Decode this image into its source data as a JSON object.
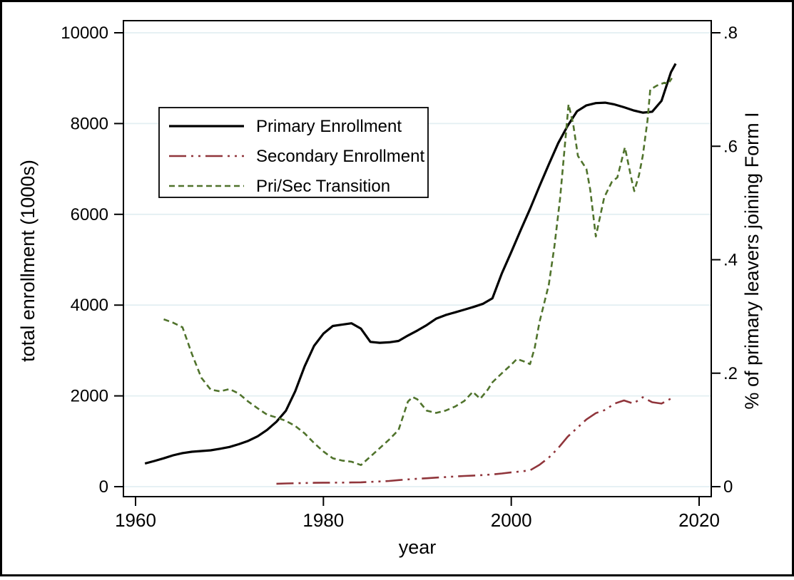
{
  "chart_data": {
    "type": "line",
    "title": "",
    "xlabel": "year",
    "ylabel_left": "total enrollment (1000s)",
    "ylabel_right": "% of primary leavers joining Form I",
    "x_tick_labels": [
      "1960",
      "1980",
      "2000",
      "2020"
    ],
    "x_ticks": [
      1960,
      1980,
      2000,
      2020
    ],
    "y_left_tick_labels": [
      "0",
      "2000",
      "4000",
      "6000",
      "8000",
      "10000"
    ],
    "y_left_ticks": [
      0,
      2000,
      4000,
      6000,
      8000,
      10000
    ],
    "y_right_tick_labels": [
      "0",
      ".2",
      ".4",
      ".6",
      ".8"
    ],
    "y_right_ticks": [
      0,
      0.2,
      0.4,
      0.6,
      0.8
    ],
    "xlim": [
      1958.7,
      2021.3
    ],
    "ylim_left": [
      0,
      10000
    ],
    "ylim_right": [
      0,
      0.8
    ],
    "grid": true,
    "gridline_color": "#e3eff2",
    "legend_position": "top-left-inside",
    "legend_entries": [
      "Primary Enrollment",
      "Secondary Enrollment",
      "Pri/Sec Transition"
    ],
    "series": [
      {
        "name": "Primary Enrollment",
        "axis": "left",
        "color": "#000000",
        "style": "solid",
        "points": [
          [
            1961,
            510
          ],
          [
            1962,
            565
          ],
          [
            1963,
            625
          ],
          [
            1964,
            690
          ],
          [
            1965,
            740
          ],
          [
            1966,
            770
          ],
          [
            1967,
            785
          ],
          [
            1968,
            800
          ],
          [
            1969,
            835
          ],
          [
            1970,
            875
          ],
          [
            1971,
            935
          ],
          [
            1972,
            1010
          ],
          [
            1973,
            1110
          ],
          [
            1974,
            1250
          ],
          [
            1975,
            1430
          ],
          [
            1976,
            1670
          ],
          [
            1977,
            2100
          ],
          [
            1978,
            2650
          ],
          [
            1979,
            3100
          ],
          [
            1980,
            3370
          ],
          [
            1981,
            3540
          ],
          [
            1982,
            3570
          ],
          [
            1983,
            3600
          ],
          [
            1984,
            3480
          ],
          [
            1985,
            3190
          ],
          [
            1986,
            3170
          ],
          [
            1987,
            3180
          ],
          [
            1988,
            3210
          ],
          [
            1989,
            3330
          ],
          [
            1990,
            3440
          ],
          [
            1991,
            3560
          ],
          [
            1992,
            3700
          ],
          [
            1993,
            3780
          ],
          [
            1994,
            3840
          ],
          [
            1995,
            3900
          ],
          [
            1996,
            3960
          ],
          [
            1997,
            4030
          ],
          [
            1998,
            4150
          ],
          [
            1999,
            4700
          ],
          [
            2000,
            5170
          ],
          [
            2001,
            5650
          ],
          [
            2002,
            6120
          ],
          [
            2003,
            6620
          ],
          [
            2004,
            7100
          ],
          [
            2005,
            7570
          ],
          [
            2006,
            7950
          ],
          [
            2007,
            8270
          ],
          [
            2008,
            8400
          ],
          [
            2009,
            8450
          ],
          [
            2010,
            8460
          ],
          [
            2011,
            8420
          ],
          [
            2012,
            8360
          ],
          [
            2013,
            8290
          ],
          [
            2014,
            8240
          ],
          [
            2015,
            8260
          ],
          [
            2016,
            8500
          ],
          [
            2017,
            9130
          ],
          [
            2017.5,
            9320
          ]
        ]
      },
      {
        "name": "Secondary Enrollment",
        "axis": "left",
        "color": "#90353b",
        "style": "dash-dot-dot",
        "points": [
          [
            1975,
            65
          ],
          [
            1976,
            70
          ],
          [
            1977,
            75
          ],
          [
            1978,
            80
          ],
          [
            1979,
            85
          ],
          [
            1980,
            88
          ],
          [
            1981,
            88
          ],
          [
            1982,
            90
          ],
          [
            1983,
            92
          ],
          [
            1984,
            95
          ],
          [
            1985,
            105
          ],
          [
            1986,
            115
          ],
          [
            1987,
            125
          ],
          [
            1988,
            145
          ],
          [
            1989,
            160
          ],
          [
            1990,
            175
          ],
          [
            1991,
            185
          ],
          [
            1992,
            200
          ],
          [
            1993,
            210
          ],
          [
            1994,
            225
          ],
          [
            1995,
            235
          ],
          [
            1996,
            245
          ],
          [
            1997,
            255
          ],
          [
            1998,
            270
          ],
          [
            1999,
            290
          ],
          [
            2000,
            315
          ],
          [
            2001,
            335
          ],
          [
            2002,
            360
          ],
          [
            2003,
            480
          ],
          [
            2004,
            640
          ],
          [
            2005,
            850
          ],
          [
            2006,
            1100
          ],
          [
            2007,
            1290
          ],
          [
            2008,
            1480
          ],
          [
            2009,
            1620
          ],
          [
            2010,
            1690
          ],
          [
            2011,
            1830
          ],
          [
            2012,
            1900
          ],
          [
            2013,
            1830
          ],
          [
            2014,
            1970
          ],
          [
            2015,
            1860
          ],
          [
            2016,
            1830
          ],
          [
            2017,
            1940
          ]
        ]
      },
      {
        "name": "Pri/Sec Transition",
        "axis": "right",
        "color": "#50732c",
        "style": "dashed",
        "points": [
          [
            1963,
            0.295
          ],
          [
            1964,
            0.289
          ],
          [
            1965,
            0.281
          ],
          [
            1966,
            0.234
          ],
          [
            1967,
            0.192
          ],
          [
            1968,
            0.171
          ],
          [
            1969,
            0.168
          ],
          [
            1970,
            0.172
          ],
          [
            1971,
            0.164
          ],
          [
            1972,
            0.15
          ],
          [
            1973,
            0.138
          ],
          [
            1974,
            0.127
          ],
          [
            1975,
            0.122
          ],
          [
            1976,
            0.116
          ],
          [
            1977,
            0.107
          ],
          [
            1978,
            0.094
          ],
          [
            1979,
            0.077
          ],
          [
            1980,
            0.062
          ],
          [
            1981,
            0.05
          ],
          [
            1982,
            0.046
          ],
          [
            1983,
            0.044
          ],
          [
            1984,
            0.038
          ],
          [
            1985,
            0.053
          ],
          [
            1986,
            0.068
          ],
          [
            1987,
            0.083
          ],
          [
            1988,
            0.1
          ],
          [
            1989,
            0.15
          ],
          [
            1989.5,
            0.158
          ],
          [
            1990,
            0.154
          ],
          [
            1991,
            0.134
          ],
          [
            1992,
            0.13
          ],
          [
            1993,
            0.134
          ],
          [
            1994,
            0.141
          ],
          [
            1995,
            0.151
          ],
          [
            1995.9,
            0.167
          ],
          [
            1996.7,
            0.155
          ],
          [
            1997.5,
            0.171
          ],
          [
            1998,
            0.184
          ],
          [
            1999,
            0.2
          ],
          [
            2000,
            0.215
          ],
          [
            2000.6,
            0.225
          ],
          [
            2001.3,
            0.221
          ],
          [
            2002,
            0.216
          ],
          [
            2002.5,
            0.245
          ],
          [
            2003,
            0.29
          ],
          [
            2004,
            0.356
          ],
          [
            2004.6,
            0.424
          ],
          [
            2005.2,
            0.508
          ],
          [
            2006.1,
            0.674
          ],
          [
            2006.6,
            0.638
          ],
          [
            2007.1,
            0.583
          ],
          [
            2008,
            0.56
          ],
          [
            2008.4,
            0.524
          ],
          [
            2009,
            0.441
          ],
          [
            2009.9,
            0.51
          ],
          [
            2010.7,
            0.537
          ],
          [
            2011.3,
            0.545
          ],
          [
            2012.1,
            0.598
          ],
          [
            2012.8,
            0.542
          ],
          [
            2013.1,
            0.521
          ],
          [
            2013.6,
            0.549
          ],
          [
            2014,
            0.583
          ],
          [
            2014.5,
            0.645
          ],
          [
            2014.8,
            0.7
          ],
          [
            2015.5,
            0.707
          ],
          [
            2016.3,
            0.712
          ],
          [
            2016.7,
            0.71
          ],
          [
            2017.1,
            0.72
          ]
        ]
      }
    ]
  }
}
